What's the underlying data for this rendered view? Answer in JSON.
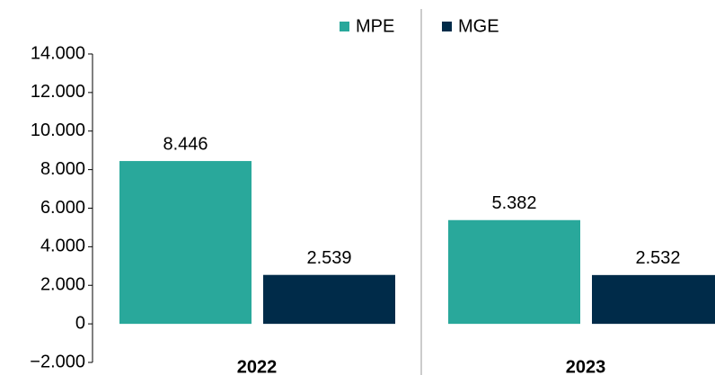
{
  "chart_data": {
    "type": "bar",
    "categories": [
      "2022",
      "2023"
    ],
    "series": [
      {
        "name": "MPE",
        "color": "#29a89b",
        "values": [
          8446,
          5382
        ],
        "value_labels": [
          "8.446",
          "5.382"
        ]
      },
      {
        "name": "MGE",
        "color": "#002b49",
        "values": [
          2539,
          2532
        ],
        "value_labels": [
          "2.539",
          "2.532"
        ]
      }
    ],
    "ylim": [
      -2000,
      14000
    ],
    "yticks": [
      {
        "value": -2000,
        "label": "−2.000"
      },
      0,
      {
        "value": 2000,
        "label": "2.000"
      },
      {
        "value": 4000,
        "label": "4.000"
      },
      {
        "value": 6000,
        "label": "6.000"
      },
      {
        "value": 8000,
        "label": "8.000"
      },
      {
        "value": 10000,
        "label": "10.000"
      },
      {
        "value": 12000,
        "label": "12.000"
      },
      {
        "value": 14000,
        "label": "14.000"
      }
    ],
    "legend": "top"
  }
}
